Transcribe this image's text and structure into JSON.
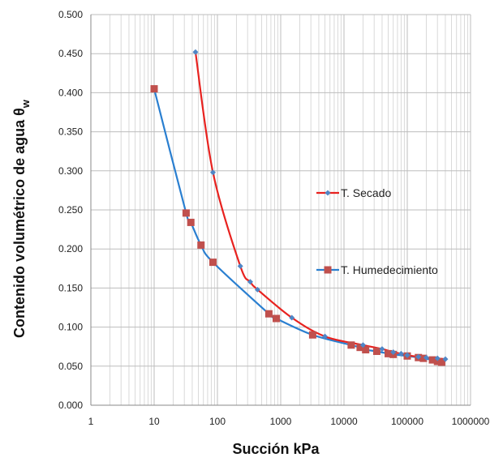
{
  "chart_data": {
    "type": "scatter",
    "xscale": "log",
    "xlim": [
      1,
      1000000
    ],
    "ylim": [
      0,
      0.5
    ],
    "xticks": [
      "1",
      "10",
      "100",
      "1000",
      "10000",
      "100000",
      "1000000"
    ],
    "yticks": [
      "0.000",
      "0.050",
      "0.100",
      "0.150",
      "0.200",
      "0.250",
      "0.300",
      "0.350",
      "0.400",
      "0.450",
      "0.500"
    ],
    "xlabel": "Succión kPa",
    "ylabel_main": "Contenido volumétrico de agua θ",
    "ylabel_sub": "w",
    "grid": true,
    "legend_position": "right-center",
    "series": [
      {
        "name": "T. Secado",
        "color": "#e8221f",
        "marker_color": "#4f86c6",
        "marker": "diamond",
        "x": [
          45,
          85,
          230,
          330,
          430,
          1500,
          5000,
          20000,
          40000,
          60000,
          80000,
          100000,
          150000,
          200000,
          300000,
          400000
        ],
        "y": [
          0.452,
          0.298,
          0.178,
          0.158,
          0.148,
          0.112,
          0.088,
          0.077,
          0.072,
          0.068,
          0.066,
          0.064,
          0.062,
          0.061,
          0.06,
          0.059
        ]
      },
      {
        "name": "T. Humedecimiento",
        "color": "#2a7fd0",
        "marker_color": "#c0504d",
        "marker": "square",
        "x": [
          10,
          32,
          38,
          55,
          85,
          650,
          850,
          3200,
          13000,
          18000,
          22000,
          33000,
          50000,
          60000,
          100000,
          150000,
          180000,
          250000,
          300000,
          350000
        ],
        "y": [
          0.405,
          0.246,
          0.234,
          0.205,
          0.183,
          0.117,
          0.111,
          0.09,
          0.077,
          0.074,
          0.071,
          0.069,
          0.066,
          0.065,
          0.063,
          0.061,
          0.06,
          0.058,
          0.056,
          0.055
        ]
      }
    ]
  }
}
